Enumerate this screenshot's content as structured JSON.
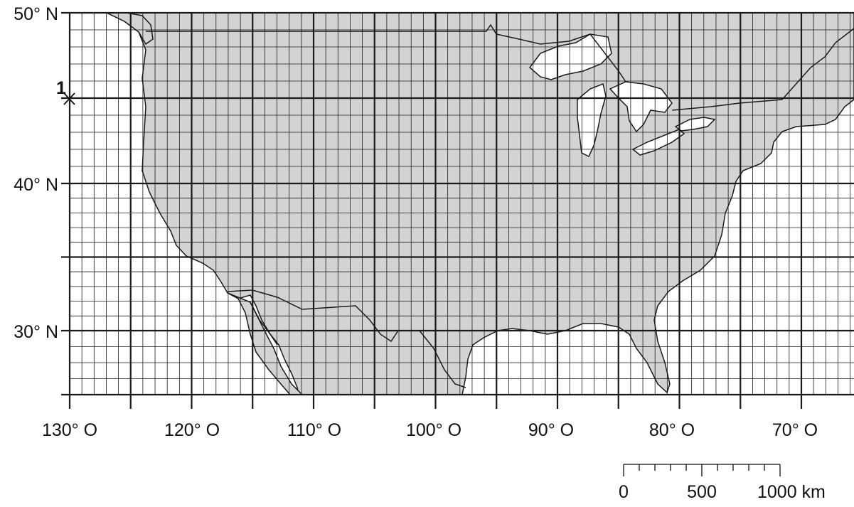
{
  "map": {
    "latitude_labels": [
      "50° N",
      "40° N",
      "30° N"
    ],
    "longitude_labels": [
      "130° O",
      "120° O",
      "110° O",
      "100° O",
      "90° O",
      "80° O",
      "70° O"
    ],
    "point_label": "1",
    "scale": {
      "ticks": [
        "0",
        "500",
        "1000 km"
      ]
    },
    "colors": {
      "land": "#d3d3d3",
      "water": "#ffffff",
      "lines": "#1a1a1a"
    }
  }
}
